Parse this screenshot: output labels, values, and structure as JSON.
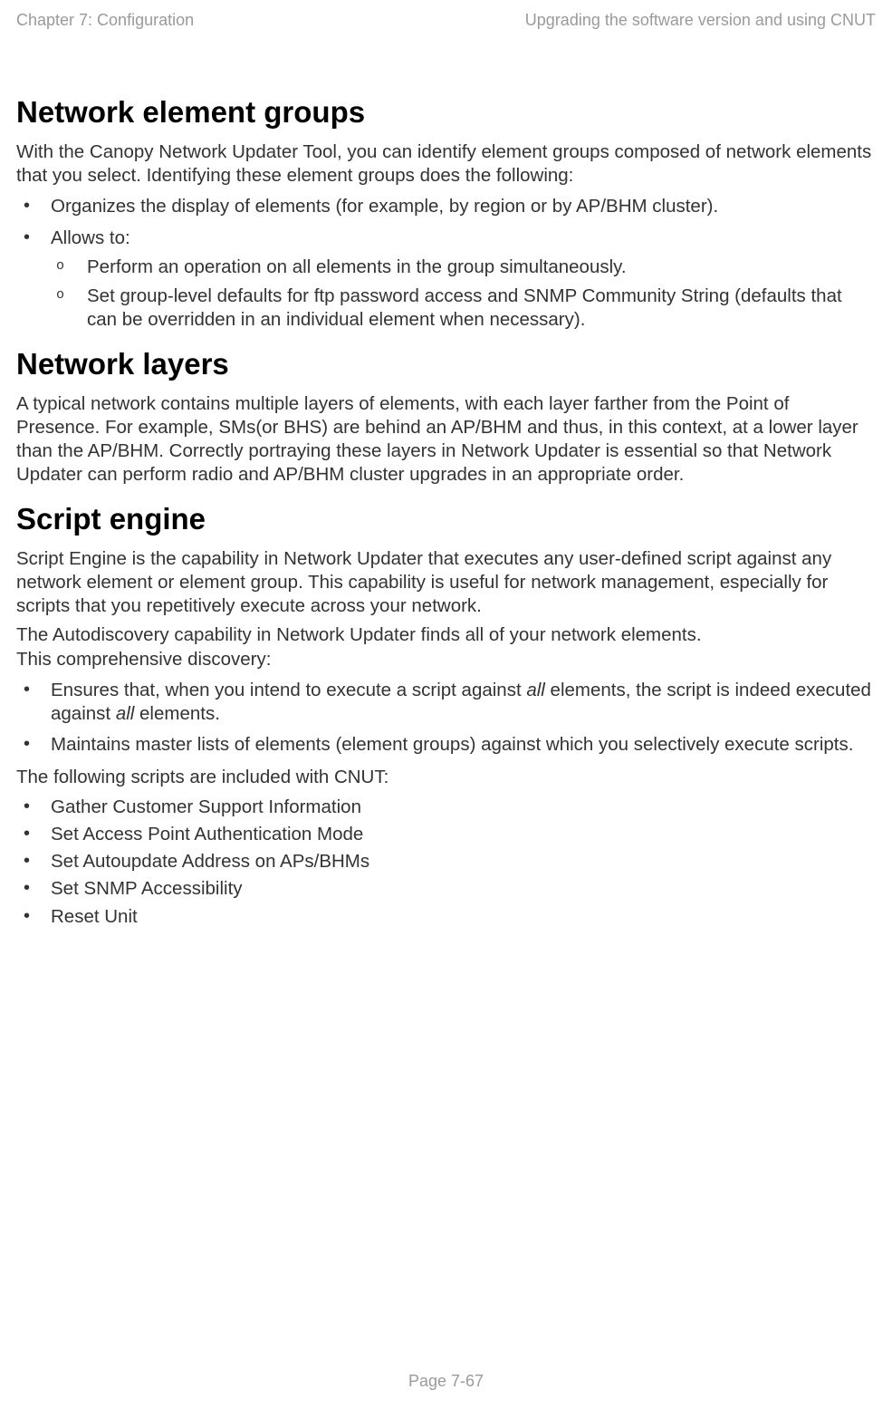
{
  "header": {
    "left": "Chapter 7:  Configuration",
    "right": "Upgrading the software version and using CNUT"
  },
  "sections": {
    "neg": {
      "title": "Network element groups",
      "intro": "With the Canopy Network Updater Tool, you can identify element groups composed of network elements that you select. Identifying these element groups does the following:",
      "b1": "Organizes the display of elements (for example, by region or by AP/BHM cluster).",
      "b2": "Allows to:",
      "b2a": "Perform an operation on all elements in the group simultaneously.",
      "b2b": "Set group-level defaults for ftp password access and SNMP Community String (defaults that can be overridden in an individual element when necessary)."
    },
    "nl": {
      "title": "Network layers",
      "p1": "A typical network contains multiple layers of elements, with each layer farther from the Point of Presence. For example, SMs(or BHS) are behind an AP/BHM and thus, in this context, at a lower layer than the AP/BHM. Correctly portraying these layers in Network Updater is essential so that Network Updater can perform radio and AP/BHM cluster upgrades in an appropriate order."
    },
    "se": {
      "title": "Script engine",
      "p1": "Script Engine is the capability in Network Updater that executes any user-defined script against any network element or element group. This capability is useful for network management, especially for scripts that you repetitively execute across your network.",
      "p2a": "The Autodiscovery capability in Network Updater finds all of your network elements.",
      "p2b": "This comprehensive discovery:",
      "b1_pre": "Ensures that, when you intend to execute a script against ",
      "b1_it1": "all",
      "b1_mid": " elements, the script is indeed executed against ",
      "b1_it2": "all",
      "b1_post": " elements.",
      "b2": "Maintains master lists of elements (element groups) against which you selectively execute scripts.",
      "p3": "The following scripts are included with CNUT:",
      "s1": "Gather Customer Support Information",
      "s2": "Set Access Point Authentication Mode",
      "s3": "Set Autoupdate Address on APs/BHMs",
      "s4": "Set SNMP Accessibility",
      "s5": "Reset Unit"
    }
  },
  "footer": {
    "page": "Page 7-67"
  }
}
